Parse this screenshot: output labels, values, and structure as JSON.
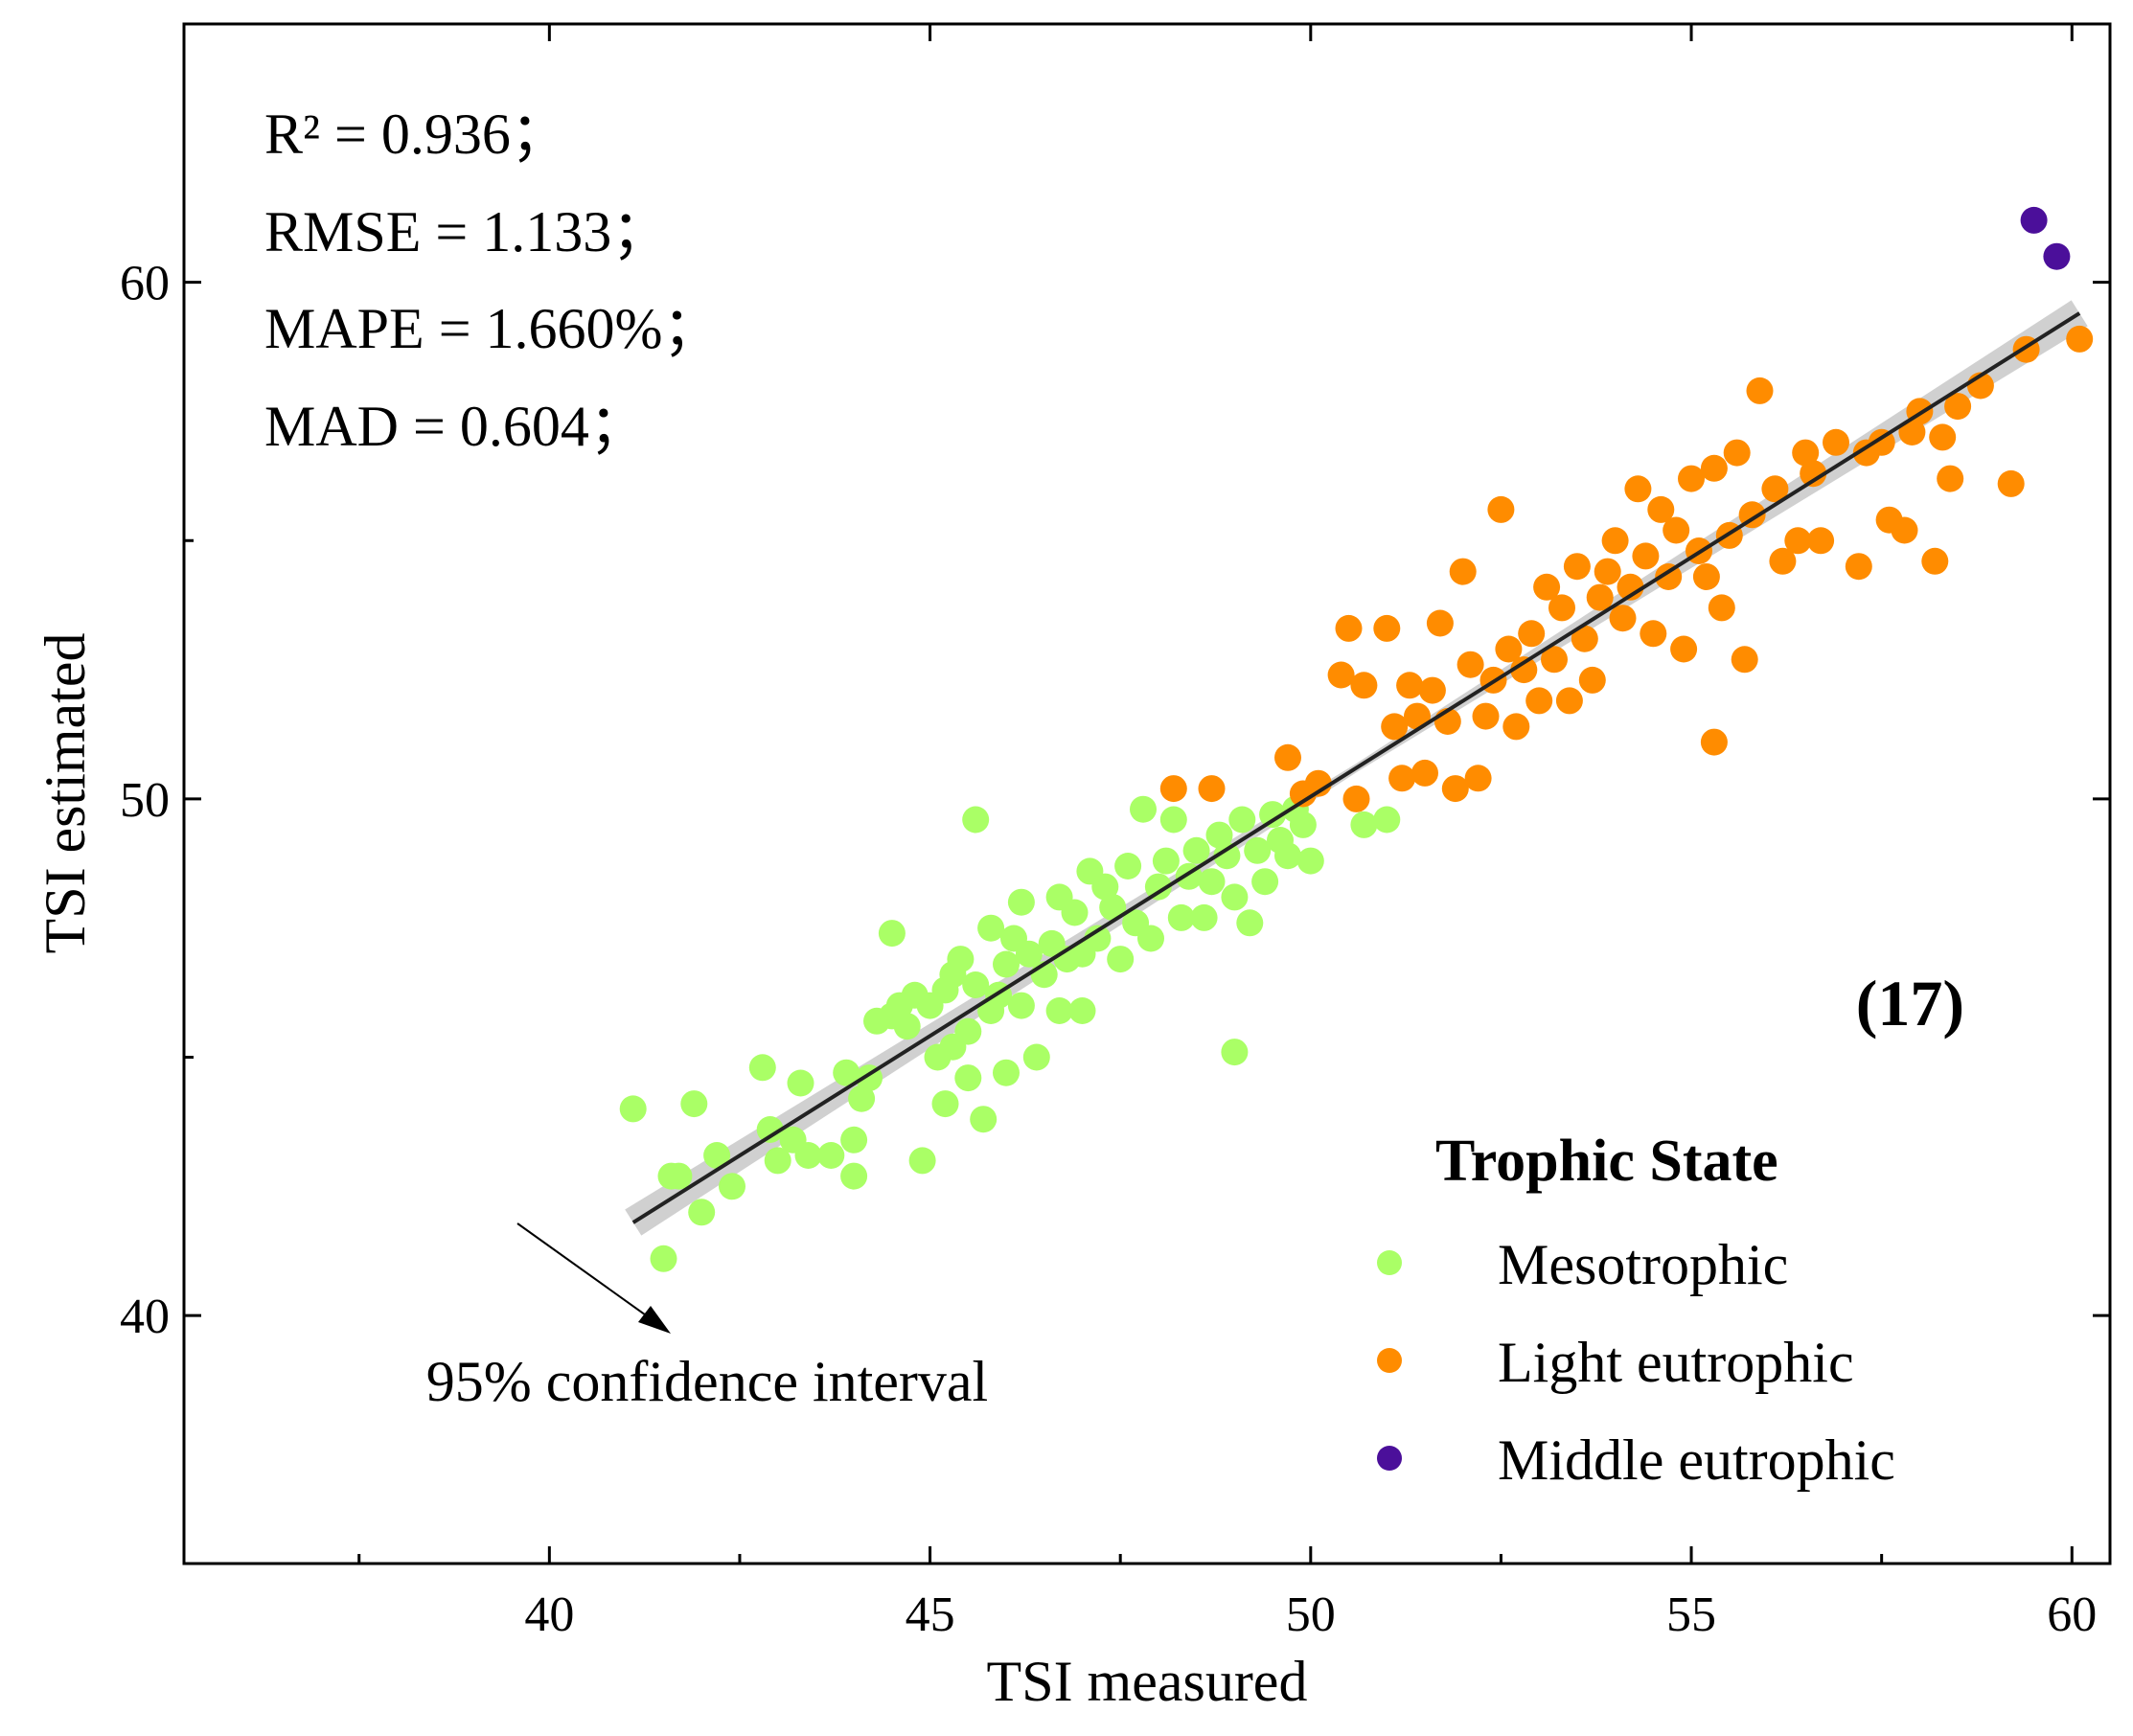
{
  "chart_data": {
    "type": "scatter",
    "xlabel": "TSI measured",
    "ylabel": "TSI estimated",
    "xlim": [
      35.2,
      60.5
    ],
    "ylim": [
      35.2,
      65.0
    ],
    "x_ticks": [
      40,
      45,
      50,
      55,
      60
    ],
    "y_ticks": [
      40,
      50,
      60
    ],
    "x_minor_step": 2.5,
    "y_minor_step": 5,
    "grid": false,
    "panel_label": "(17)",
    "stats": [
      "R² = 0.936；",
      "RMSE = 1.133；",
      "MAPE = 1.660%；",
      "MAD = 0.604；"
    ],
    "legend": {
      "title": "Trophic State",
      "placement": "bottom-right"
    },
    "fit_line": {
      "x": [
        41.1,
        60.1
      ],
      "y": [
        41.8,
        59.4
      ]
    },
    "confidence_band_label": "95% confidence interval",
    "colors": {
      "Mesotrophic": "#aaff66",
      "Light eutrophic": "#ff8c00",
      "Middle eutrophic": "#4b0f9a",
      "fit": "#222222",
      "band": "#c8c8c8"
    },
    "series": [
      {
        "name": "Mesotrophic",
        "color": "#aaff66",
        "points": [
          [
            41.1,
            44.0
          ],
          [
            41.5,
            41.1
          ],
          [
            41.6,
            42.7
          ],
          [
            41.7,
            42.7
          ],
          [
            41.9,
            44.1
          ],
          [
            42.0,
            42.0
          ],
          [
            42.2,
            43.1
          ],
          [
            42.4,
            42.5
          ],
          [
            42.8,
            44.8
          ],
          [
            42.9,
            43.6
          ],
          [
            43.0,
            43.0
          ],
          [
            43.2,
            43.4
          ],
          [
            43.3,
            44.5
          ],
          [
            43.4,
            43.1
          ],
          [
            43.7,
            43.1
          ],
          [
            43.9,
            44.7
          ],
          [
            44.0,
            43.4
          ],
          [
            44.0,
            42.7
          ],
          [
            44.1,
            44.2
          ],
          [
            44.2,
            44.6
          ],
          [
            44.3,
            45.7
          ],
          [
            44.5,
            45.8
          ],
          [
            44.5,
            47.4
          ],
          [
            44.6,
            46.0
          ],
          [
            44.7,
            45.6
          ],
          [
            44.8,
            46.2
          ],
          [
            44.9,
            43.0
          ],
          [
            45.0,
            46.0
          ],
          [
            45.1,
            45.0
          ],
          [
            45.2,
            44.1
          ],
          [
            45.2,
            46.3
          ],
          [
            45.3,
            46.6
          ],
          [
            45.3,
            45.2
          ],
          [
            45.4,
            46.9
          ],
          [
            45.5,
            45.5
          ],
          [
            45.5,
            44.6
          ],
          [
            45.6,
            46.4
          ],
          [
            45.6,
            49.6
          ],
          [
            45.7,
            43.8
          ],
          [
            45.8,
            45.9
          ],
          [
            45.8,
            47.5
          ],
          [
            45.9,
            46.2
          ],
          [
            46.0,
            46.8
          ],
          [
            46.0,
            44.7
          ],
          [
            46.1,
            47.3
          ],
          [
            46.2,
            46.0
          ],
          [
            46.2,
            48.0
          ],
          [
            46.3,
            47.0
          ],
          [
            46.4,
            45.0
          ],
          [
            46.5,
            46.6
          ],
          [
            46.6,
            47.2
          ],
          [
            46.7,
            48.1
          ],
          [
            46.7,
            45.9
          ],
          [
            46.8,
            46.9
          ],
          [
            46.9,
            47.8
          ],
          [
            47.0,
            47.0
          ],
          [
            47.0,
            45.9
          ],
          [
            47.1,
            48.6
          ],
          [
            47.2,
            47.3
          ],
          [
            47.3,
            48.3
          ],
          [
            47.4,
            47.9
          ],
          [
            47.5,
            46.9
          ],
          [
            47.6,
            48.7
          ],
          [
            47.7,
            47.6
          ],
          [
            47.8,
            49.8
          ],
          [
            47.9,
            47.3
          ],
          [
            48.0,
            48.3
          ],
          [
            48.1,
            48.8
          ],
          [
            48.2,
            49.6
          ],
          [
            48.3,
            47.7
          ],
          [
            48.4,
            48.5
          ],
          [
            48.5,
            49.0
          ],
          [
            48.6,
            47.7
          ],
          [
            48.7,
            48.4
          ],
          [
            48.8,
            49.3
          ],
          [
            48.9,
            48.9
          ],
          [
            49.0,
            48.1
          ],
          [
            49.0,
            45.1
          ],
          [
            49.1,
            49.6
          ],
          [
            49.2,
            47.6
          ],
          [
            49.3,
            49.0
          ],
          [
            49.4,
            48.4
          ],
          [
            49.5,
            49.7
          ],
          [
            49.6,
            49.2
          ],
          [
            49.7,
            48.9
          ],
          [
            49.8,
            49.8
          ],
          [
            49.9,
            49.5
          ],
          [
            50.0,
            48.8
          ],
          [
            50.7,
            49.5
          ],
          [
            51.0,
            49.6
          ]
        ]
      },
      {
        "name": "Light eutrophic",
        "color": "#ff8c00",
        "points": [
          [
            48.2,
            50.2
          ],
          [
            48.7,
            50.2
          ],
          [
            49.7,
            50.8
          ],
          [
            49.9,
            50.1
          ],
          [
            50.1,
            50.3
          ],
          [
            50.4,
            52.4
          ],
          [
            50.5,
            53.3
          ],
          [
            50.6,
            50.0
          ],
          [
            50.7,
            52.2
          ],
          [
            51.0,
            53.3
          ],
          [
            51.1,
            51.4
          ],
          [
            51.2,
            50.4
          ],
          [
            51.3,
            52.2
          ],
          [
            51.4,
            51.6
          ],
          [
            51.5,
            50.5
          ],
          [
            51.6,
            52.1
          ],
          [
            51.7,
            53.4
          ],
          [
            51.8,
            51.5
          ],
          [
            51.9,
            50.2
          ],
          [
            52.0,
            54.4
          ],
          [
            52.1,
            52.6
          ],
          [
            52.2,
            50.4
          ],
          [
            52.3,
            51.6
          ],
          [
            52.4,
            52.3
          ],
          [
            52.5,
            55.6
          ],
          [
            52.6,
            52.9
          ],
          [
            52.7,
            51.4
          ],
          [
            52.8,
            52.5
          ],
          [
            52.9,
            53.2
          ],
          [
            53.0,
            51.9
          ],
          [
            53.1,
            54.1
          ],
          [
            53.2,
            52.7
          ],
          [
            53.3,
            53.7
          ],
          [
            53.4,
            51.9
          ],
          [
            53.5,
            54.5
          ],
          [
            53.6,
            53.1
          ],
          [
            53.7,
            52.3
          ],
          [
            53.8,
            53.9
          ],
          [
            53.9,
            54.4
          ],
          [
            54.0,
            55.0
          ],
          [
            54.1,
            53.5
          ],
          [
            54.2,
            54.1
          ],
          [
            54.3,
            56.0
          ],
          [
            54.4,
            54.7
          ],
          [
            54.5,
            53.2
          ],
          [
            54.6,
            55.6
          ],
          [
            54.7,
            54.3
          ],
          [
            54.8,
            55.2
          ],
          [
            54.9,
            52.9
          ],
          [
            55.0,
            56.2
          ],
          [
            55.1,
            54.8
          ],
          [
            55.2,
            54.3
          ],
          [
            55.3,
            56.4
          ],
          [
            55.3,
            51.1
          ],
          [
            55.4,
            53.7
          ],
          [
            55.5,
            55.1
          ],
          [
            55.6,
            56.7
          ],
          [
            55.7,
            52.7
          ],
          [
            55.8,
            55.5
          ],
          [
            55.9,
            57.9
          ],
          [
            56.1,
            56.0
          ],
          [
            56.2,
            54.6
          ],
          [
            56.4,
            55.0
          ],
          [
            56.5,
            56.7
          ],
          [
            56.6,
            56.3
          ],
          [
            56.7,
            55.0
          ],
          [
            56.9,
            56.9
          ],
          [
            57.2,
            54.5
          ],
          [
            57.3,
            56.7
          ],
          [
            57.5,
            56.9
          ],
          [
            57.6,
            55.4
          ],
          [
            57.8,
            55.2
          ],
          [
            57.9,
            57.1
          ],
          [
            58.0,
            57.5
          ],
          [
            58.2,
            54.6
          ],
          [
            58.3,
            57.0
          ],
          [
            58.4,
            56.2
          ],
          [
            58.5,
            57.6
          ],
          [
            58.8,
            58.0
          ],
          [
            59.2,
            56.1
          ],
          [
            59.4,
            58.7
          ],
          [
            60.1,
            58.9
          ]
        ]
      },
      {
        "name": "Middle eutrophic",
        "color": "#4b0f9a",
        "points": [
          [
            59.5,
            61.2
          ],
          [
            59.8,
            60.5
          ]
        ]
      }
    ]
  }
}
